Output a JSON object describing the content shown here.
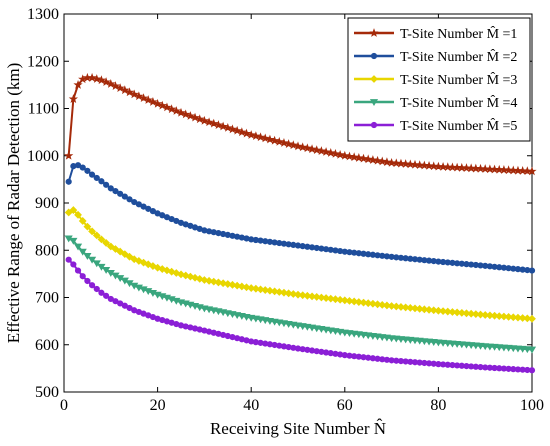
{
  "chart_data": {
    "type": "line",
    "title": "",
    "xlabel": "Receiving Site Number N̂",
    "ylabel": "Effective Range of Radar Detection (km)",
    "xlim": [
      0,
      100
    ],
    "ylim": [
      500,
      1300
    ],
    "xticks": [
      0,
      20,
      40,
      60,
      80,
      100
    ],
    "yticks": [
      500,
      600,
      700,
      800,
      900,
      1000,
      1100,
      1200,
      1300
    ],
    "grid": false,
    "legend_position": "top-right",
    "series": [
      {
        "name": "T-Site Number M̂ =1",
        "color": "#a52a0a",
        "marker": "star",
        "x": [
          1,
          2,
          3,
          4,
          5,
          6,
          8,
          10,
          15,
          20,
          25,
          30,
          40,
          50,
          60,
          70,
          80,
          90,
          100
        ],
        "y": [
          1000,
          1120,
          1150,
          1162,
          1165,
          1165,
          1160,
          1152,
          1130,
          1110,
          1091,
          1074,
          1044,
          1020,
          1000,
          985,
          977,
          972,
          967
        ]
      },
      {
        "name": "T-Site Number M̂ =2",
        "color": "#1f4e9c",
        "marker": "circle",
        "x": [
          1,
          2,
          3,
          4,
          5,
          6,
          8,
          10,
          15,
          20,
          25,
          30,
          40,
          50,
          60,
          70,
          80,
          90,
          100
        ],
        "y": [
          945,
          978,
          980,
          975,
          968,
          960,
          946,
          931,
          902,
          878,
          858,
          842,
          823,
          810,
          797,
          786,
          776,
          767,
          757
        ]
      },
      {
        "name": "T-Site Number M̂ =3",
        "color": "#e8d600",
        "marker": "diamond",
        "x": [
          1,
          2,
          3,
          4,
          5,
          6,
          8,
          10,
          15,
          20,
          25,
          30,
          40,
          50,
          60,
          70,
          80,
          90,
          100
        ],
        "y": [
          880,
          885,
          875,
          862,
          850,
          840,
          823,
          808,
          781,
          763,
          749,
          737,
          720,
          706,
          694,
          682,
          672,
          663,
          655
        ]
      },
      {
        "name": "T-Site Number M̂ =4",
        "color": "#3aa67e",
        "marker": "triangle-down",
        "x": [
          1,
          2,
          3,
          4,
          5,
          6,
          8,
          10,
          15,
          20,
          25,
          30,
          40,
          50,
          60,
          70,
          80,
          90,
          100
        ],
        "y": [
          825,
          820,
          808,
          797,
          788,
          780,
          765,
          752,
          725,
          706,
          690,
          677,
          657,
          641,
          626,
          614,
          605,
          597,
          590
        ]
      },
      {
        "name": "T-Site Number M̂ =5",
        "color": "#8b1fd6",
        "marker": "circle",
        "x": [
          1,
          2,
          3,
          4,
          5,
          6,
          8,
          10,
          15,
          20,
          25,
          30,
          40,
          50,
          60,
          70,
          80,
          90,
          100
        ],
        "y": [
          780,
          770,
          757,
          745,
          735,
          726,
          710,
          697,
          673,
          655,
          641,
          630,
          607,
          592,
          578,
          567,
          559,
          552,
          546
        ]
      }
    ]
  }
}
